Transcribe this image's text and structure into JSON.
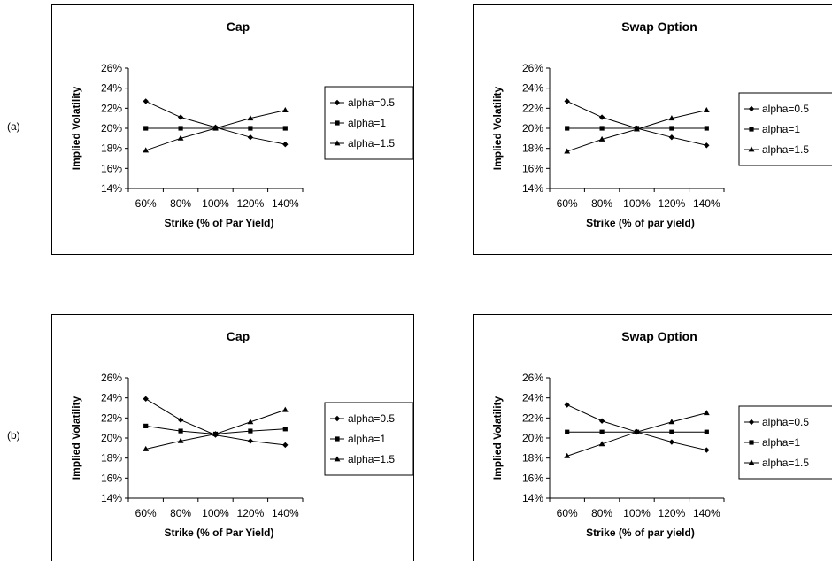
{
  "row_labels": [
    "(a)",
    "(b)"
  ],
  "chart_data": [
    {
      "type": "line",
      "title": "Cap",
      "xlabel": "Strike (% of Par Yield)",
      "ylabel": "Implied Volatility",
      "categories": [
        "60%",
        "80%",
        "100%",
        "120%",
        "140%"
      ],
      "x": [
        60,
        80,
        100,
        120,
        140
      ],
      "yticks": [
        "14%",
        "16%",
        "18%",
        "20%",
        "22%",
        "24%",
        "26%"
      ],
      "ylim": [
        14,
        26
      ],
      "grid": false,
      "legend_position": "right",
      "series": [
        {
          "name": "alpha=0.5",
          "marker": "diamond",
          "values": [
            22.7,
            21.1,
            20.1,
            19.1,
            18.4
          ]
        },
        {
          "name": "alpha=1",
          "marker": "square",
          "values": [
            20.0,
            20.0,
            20.0,
            20.0,
            20.0
          ]
        },
        {
          "name": "alpha=1.5",
          "marker": "triangle",
          "values": [
            17.8,
            19.0,
            20.0,
            21.0,
            21.8
          ]
        }
      ]
    },
    {
      "type": "line",
      "title": "Swap Option",
      "xlabel": "Strike (% of par yield)",
      "ylabel": "Implied Volatility",
      "categories": [
        "60%",
        "80%",
        "100%",
        "120%",
        "140%"
      ],
      "x": [
        60,
        80,
        100,
        120,
        140
      ],
      "yticks": [
        "14%",
        "16%",
        "18%",
        "20%",
        "22%",
        "24%",
        "26%"
      ],
      "ylim": [
        14,
        26
      ],
      "grid": false,
      "legend_position": "right",
      "series": [
        {
          "name": "alpha=0.5",
          "marker": "diamond",
          "values": [
            22.7,
            21.1,
            20.0,
            19.1,
            18.3
          ]
        },
        {
          "name": "alpha=1",
          "marker": "square",
          "values": [
            20.0,
            20.0,
            20.0,
            20.0,
            20.0
          ]
        },
        {
          "name": "alpha=1.5",
          "marker": "triangle",
          "values": [
            17.7,
            18.9,
            19.9,
            21.0,
            21.8
          ]
        }
      ]
    },
    {
      "type": "line",
      "title": "Cap",
      "xlabel": "Strike (% of Par Yield)",
      "ylabel": "Implied Volatility",
      "categories": [
        "60%",
        "80%",
        "100%",
        "120%",
        "140%"
      ],
      "x": [
        60,
        80,
        100,
        120,
        140
      ],
      "yticks": [
        "14%",
        "16%",
        "18%",
        "20%",
        "22%",
        "24%",
        "26%"
      ],
      "ylim": [
        14,
        26
      ],
      "grid": false,
      "legend_position": "right",
      "series": [
        {
          "name": "alpha=0.5",
          "marker": "diamond",
          "values": [
            23.9,
            21.8,
            20.3,
            19.7,
            19.3
          ]
        },
        {
          "name": "alpha=1",
          "marker": "square",
          "values": [
            21.2,
            20.7,
            20.4,
            20.7,
            20.9
          ]
        },
        {
          "name": "alpha=1.5",
          "marker": "triangle",
          "values": [
            18.9,
            19.7,
            20.4,
            21.6,
            22.8
          ]
        }
      ]
    },
    {
      "type": "line",
      "title": "Swap Option",
      "xlabel": "Strike (% of par yield)",
      "ylabel": "Implied Volatility",
      "categories": [
        "60%",
        "80%",
        "100%",
        "120%",
        "140%"
      ],
      "x": [
        60,
        80,
        100,
        120,
        140
      ],
      "yticks": [
        "14%",
        "16%",
        "18%",
        "20%",
        "22%",
        "24%",
        "26%"
      ],
      "ylim": [
        14,
        26
      ],
      "grid": false,
      "legend_position": "right",
      "series": [
        {
          "name": "alpha=0.5",
          "marker": "diamond",
          "values": [
            23.3,
            21.7,
            20.6,
            19.6,
            18.8
          ]
        },
        {
          "name": "alpha=1",
          "marker": "square",
          "values": [
            20.6,
            20.6,
            20.6,
            20.6,
            20.6
          ]
        },
        {
          "name": "alpha=1.5",
          "marker": "triangle",
          "values": [
            18.2,
            19.4,
            20.6,
            21.6,
            22.5
          ]
        }
      ]
    }
  ]
}
